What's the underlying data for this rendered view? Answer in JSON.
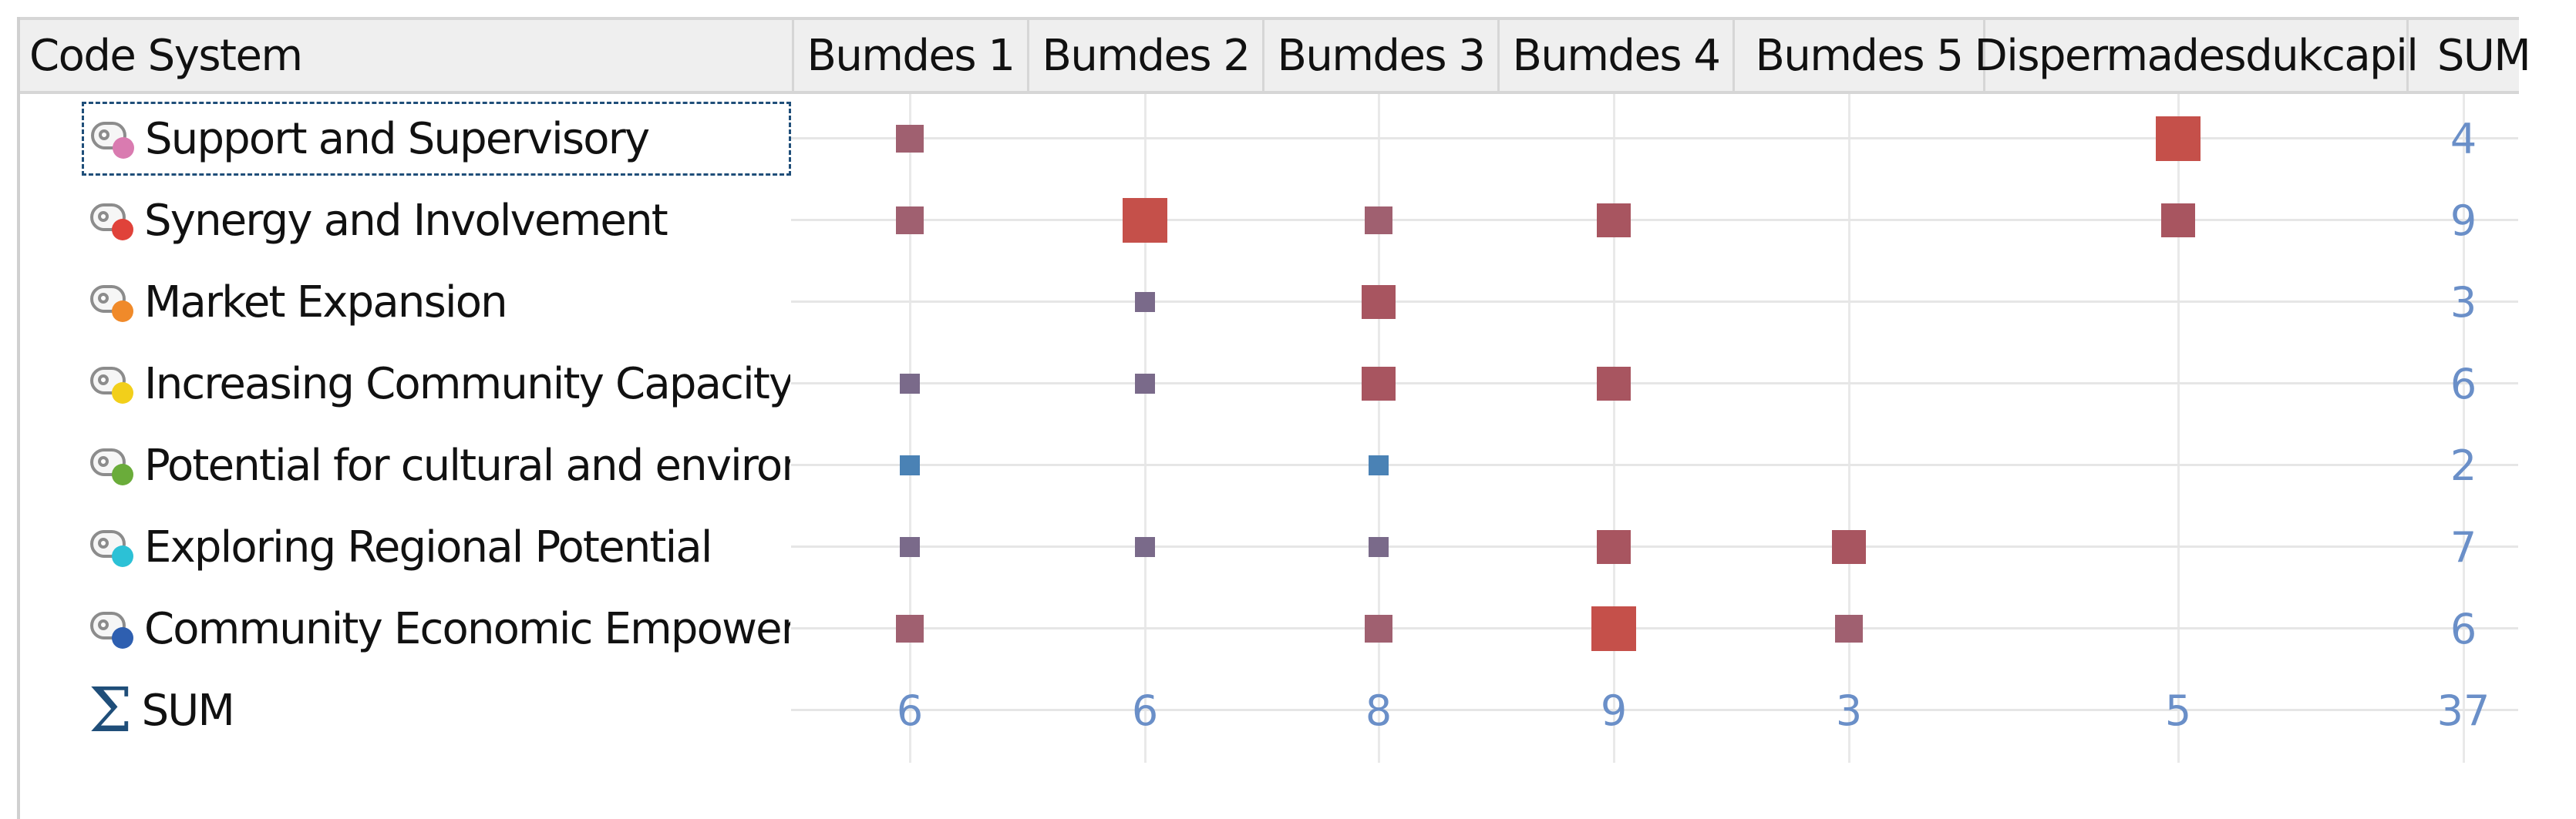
{
  "header": {
    "first_label": "Code System",
    "columns": [
      "Bumdes 1",
      "Bumdes 2",
      "Bumdes 3",
      "Bumdes 4",
      "Bumdes 5",
      "Dispermadesdukcapil"
    ],
    "sum_label": "SUM"
  },
  "rows": [
    {
      "label": "Support and Supervisory",
      "dot_color": "#d97bb0",
      "focused": true,
      "cells": [
        "small",
        "",
        "",
        "",
        "",
        "large"
      ],
      "colors": [
        "#a06070",
        "",
        "",
        "",
        "",
        "#c5504a"
      ],
      "sum": "4"
    },
    {
      "label": "Synergy and Involvement",
      "dot_color": "#e0423a",
      "cells": [
        "small",
        "large",
        "small",
        "medium",
        "",
        "medium"
      ],
      "colors": [
        "#a06070",
        "#c5504a",
        "#a06070",
        "#a85560",
        "",
        "#a85560"
      ],
      "sum": "9"
    },
    {
      "label": "Market Expansion",
      "dot_color": "#f08a2a",
      "cells": [
        "",
        "tiny",
        "medium",
        "",
        "",
        ""
      ],
      "colors": [
        "",
        "#7a6a8a",
        "#a85560",
        "",
        "",
        ""
      ],
      "sum": "3"
    },
    {
      "label": "Increasing Community Capacity to beco",
      "dot_color": "#f2cf1a",
      "cells": [
        "tiny",
        "tiny",
        "medium",
        "medium",
        "",
        ""
      ],
      "colors": [
        "#7a6a8a",
        "#7a6a8a",
        "#a85560",
        "#a85560",
        "",
        ""
      ],
      "sum": "6"
    },
    {
      "label": "Potential for cultural and environmental",
      "dot_color": "#6aac3a",
      "cells": [
        "tiny",
        "",
        "tiny",
        "",
        "",
        ""
      ],
      "colors": [
        "#4a82b5",
        "",
        "#4a82b5",
        "",
        "",
        ""
      ],
      "sum": "2"
    },
    {
      "label": "Exploring Regional Potential",
      "dot_color": "#2cc1d6",
      "cells": [
        "tiny",
        "tiny",
        "tiny",
        "medium",
        "medium",
        ""
      ],
      "colors": [
        "#7a6a8a",
        "#7a6a8a",
        "#7a6a8a",
        "#a85560",
        "#a85560",
        ""
      ],
      "sum": "7"
    },
    {
      "label": "Community Economic Empowerment",
      "dot_color": "#2e5fb0",
      "cells": [
        "small",
        "",
        "small",
        "large",
        "small",
        ""
      ],
      "colors": [
        "#a06070",
        "",
        "#a06070",
        "#c5504a",
        "#a06070",
        ""
      ],
      "sum": "6"
    }
  ],
  "totals": {
    "label": "SUM",
    "values": [
      "6",
      "6",
      "8",
      "9",
      "3",
      "5"
    ],
    "grand_total": "37"
  },
  "icons": {
    "code": "code-tag-icon",
    "sum": "sigma-icon"
  }
}
